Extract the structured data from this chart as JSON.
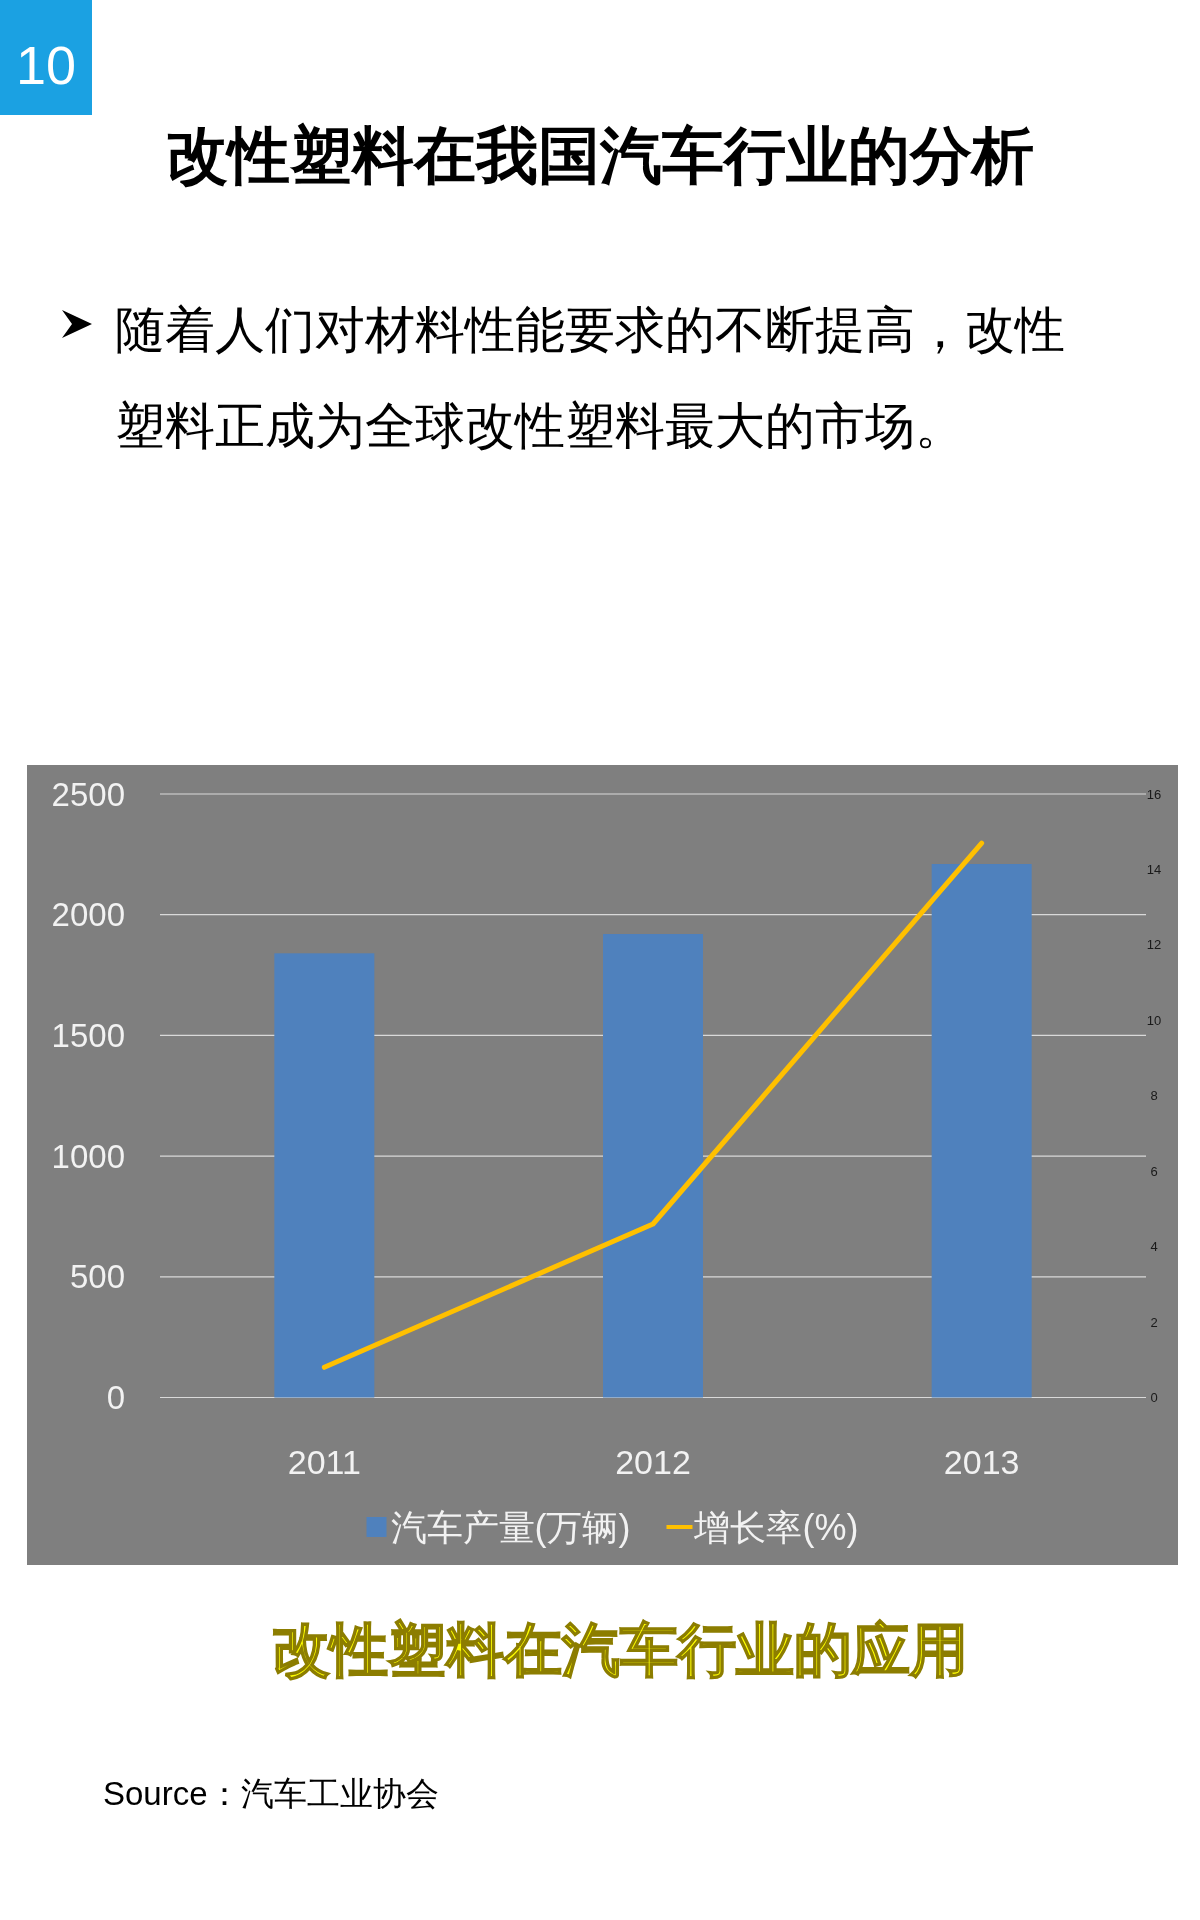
{
  "chart_data": {
    "type": "bar",
    "title": "改性塑料在我国汽车行业的分析",
    "subtitle": "随着人们对材料性能要求的不断提高，改性塑料正成为全球改性塑料最大的市场。",
    "annotations": [
      "10",
      "改性塑料在汽车行业的应用",
      "Source：汽车工业协会"
    ],
    "categories": [
      "2011",
      "2012",
      "2013"
    ],
    "series": [
      {
        "name": "汽车产量(万辆)",
        "color": "#4f81bd",
        "values": [
          1840,
          1920,
          2210
        ]
      },
      {
        "name": "增长率(%)",
        "type": "line",
        "axis": "y2",
        "color": "#ffc000",
        "values": [
          0.8,
          4.6,
          14.7
        ]
      }
    ],
    "ylim": [
      0,
      2500
    ],
    "yticks": [
      0,
      500,
      1000,
      1500,
      2000,
      2500
    ],
    "y2lim": [
      0,
      16
    ],
    "y2ticks": [
      0,
      2,
      4,
      6,
      8,
      10,
      12,
      14,
      16
    ],
    "grid": "y",
    "legend": "bottom",
    "marker": "none"
  }
}
